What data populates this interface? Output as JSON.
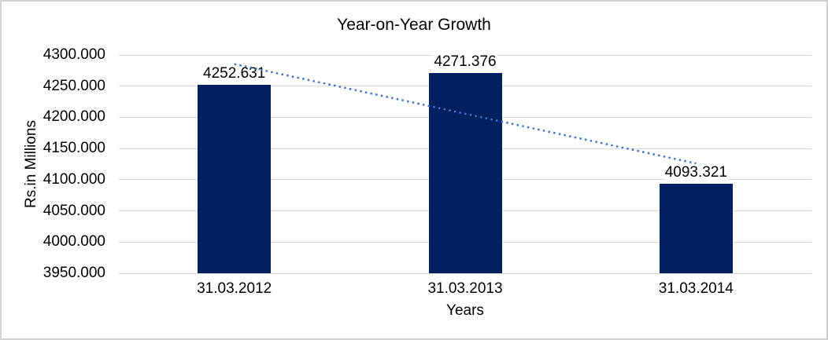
{
  "chart_data": {
    "type": "bar",
    "title": "Year-on-Year Growth",
    "categories": [
      "31.03.2012",
      "31.03.2013",
      "31.03.2014"
    ],
    "values": [
      4252.631,
      4271.376,
      4093.321
    ],
    "data_labels": [
      "4252.631",
      "4271.376",
      "4093.321"
    ],
    "xlabel": "Years",
    "ylabel": "Rs.in Millions",
    "ylim": [
      3950,
      4300
    ],
    "ytick_step": 50,
    "ytick_labels": [
      "4300.000",
      "4250.000",
      "4200.000",
      "4150.000",
      "4100.000",
      "4050.000",
      "4000.000",
      "3950.000"
    ],
    "grid": true,
    "legend": false,
    "bar_color": "#002060",
    "gridline_color": "#d9d9d9",
    "trendline": {
      "type": "linear",
      "style": "dotted",
      "color": "#4472c4"
    }
  }
}
